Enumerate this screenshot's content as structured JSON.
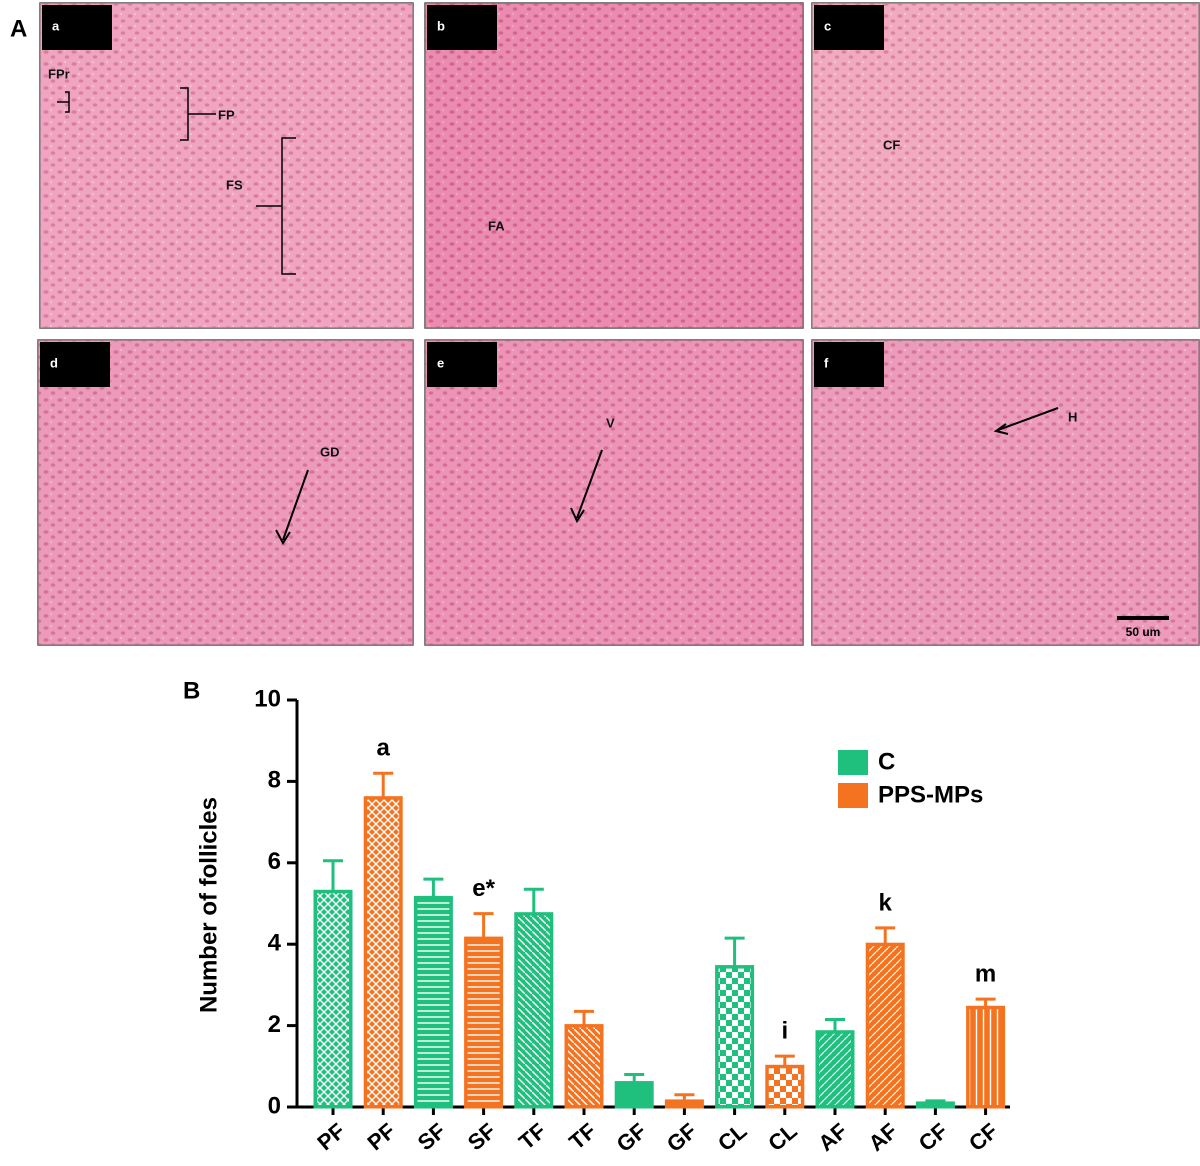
{
  "panel_a": {
    "label": "A",
    "panels": [
      {
        "letter": "a",
        "labels": [
          "FPr",
          "FP",
          "FS"
        ]
      },
      {
        "letter": "b",
        "labels": [
          "FA"
        ]
      },
      {
        "letter": "c",
        "labels": [
          "CF"
        ]
      },
      {
        "letter": "d",
        "labels": [
          "GD"
        ]
      },
      {
        "letter": "e",
        "labels": [
          "V"
        ]
      },
      {
        "letter": "f",
        "labels": [
          "H"
        ]
      }
    ],
    "scale_bar": "50 um"
  },
  "chart_data": {
    "type": "bar",
    "panel_label": "B",
    "y_label": "Number of follicles",
    "categories": [
      "PF",
      "PF",
      "SF",
      "SF",
      "TF",
      "TF",
      "GF",
      "GF",
      "CL",
      "CL",
      "AF",
      "AF",
      "CF",
      "CF"
    ],
    "series": [
      {
        "name": "C",
        "color": "#1fbf7e",
        "values": [
          5.3,
          null,
          5.15,
          null,
          4.75,
          null,
          0.6,
          null,
          3.45,
          null,
          1.85,
          null,
          0.1,
          null
        ],
        "errors": [
          0.75,
          null,
          0.45,
          null,
          0.6,
          null,
          0.2,
          null,
          0.7,
          null,
          0.3,
          null,
          0.05,
          null
        ]
      },
      {
        "name": "PPS-MPs",
        "color": "#f47320",
        "values": [
          null,
          7.6,
          null,
          4.15,
          null,
          2.0,
          null,
          0.15,
          null,
          1.0,
          null,
          4.0,
          null,
          2.45
        ],
        "errors": [
          null,
          0.6,
          null,
          0.6,
          null,
          0.35,
          null,
          0.15,
          null,
          0.25,
          null,
          0.4,
          null,
          0.2
        ],
        "annotations": [
          null,
          "a",
          null,
          "e*",
          null,
          null,
          null,
          null,
          null,
          "i",
          null,
          "k",
          null,
          "m"
        ]
      }
    ],
    "ylim": [
      0,
      10
    ],
    "yticks": [
      0,
      2,
      4,
      6,
      8,
      10
    ],
    "grid": false
  }
}
